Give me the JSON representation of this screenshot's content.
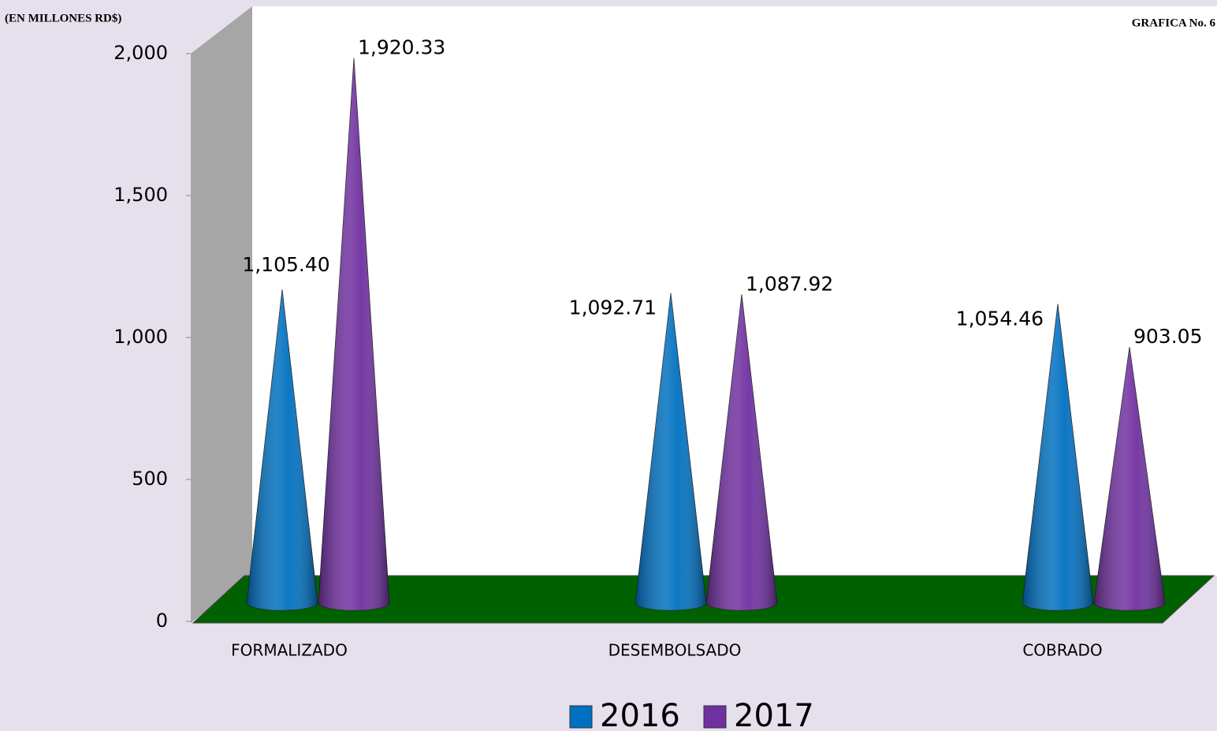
{
  "chart_data": {
    "type": "cone",
    "title": "GRAFICA No. 6",
    "y_label": "(EN MILLONES RD$)",
    "categories": [
      "FORMALIZADO",
      "DESEMBOLSADO",
      "COBRADO"
    ],
    "series": [
      {
        "name": "2016",
        "color": "#0070c0",
        "values": [
          1105.4,
          1092.71,
          1054.46
        ],
        "value_labels": [
          "1,105.40",
          "1,092.71",
          "1,054.46"
        ]
      },
      {
        "name": "2017",
        "color": "#7030a0",
        "values": [
          1920.33,
          1087.92,
          903.05
        ],
        "value_labels": [
          "1,920.33",
          "1,087.92",
          "903.05"
        ]
      }
    ],
    "ylim": [
      0,
      2000
    ],
    "yticks": [
      0,
      500,
      {
        "value": 1000,
        "label": "1,000"
      },
      {
        "value": 1500,
        "label": "1,500"
      },
      {
        "value": 2000,
        "label": "2,000"
      }
    ]
  }
}
